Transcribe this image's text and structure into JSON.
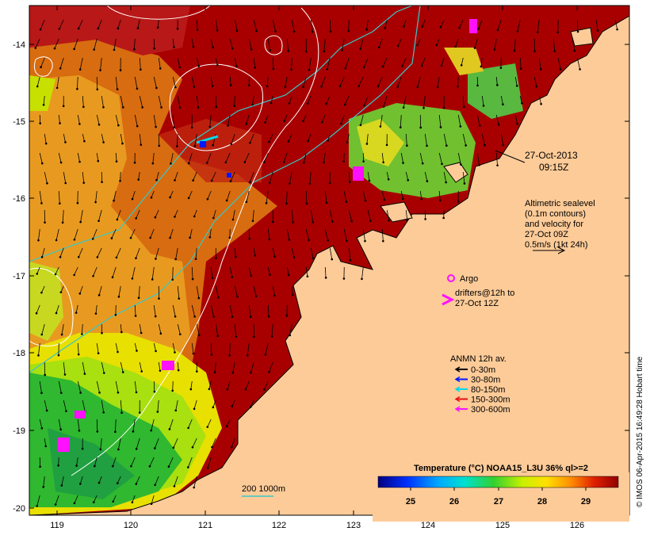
{
  "map": {
    "x_ticks": [
      "119",
      "120",
      "121",
      "122",
      "123",
      "124",
      "125",
      "126"
    ],
    "y_ticks": [
      "-14",
      "-15",
      "-16",
      "-17",
      "-18",
      "-19",
      "-20"
    ],
    "date": "27-Oct-2013",
    "time": "09:15Z",
    "altimetry_lines": [
      "Altimetric sealevel",
      "(0.1m contours)",
      "and velocity for",
      "27-Oct 09Z",
      "0.5m/s (1kt 24h)"
    ],
    "argo_label": "Argo",
    "drifters_lines": [
      "drifters@12h to",
      "27-Oct 12Z"
    ],
    "anmn_title": "ANMN 12h av.",
    "anmn_items": [
      {
        "label": "0-30m",
        "color": "#000000"
      },
      {
        "label": "30-80m",
        "color": "#0018ff"
      },
      {
        "label": "80-150m",
        "color": "#00d8e8"
      },
      {
        "label": "150-300m",
        "color": "#e81010"
      },
      {
        "label": "300-600m",
        "color": "#ff10ff"
      }
    ],
    "colorbar_title": "Temperature (°C) NOAA15_L3U 36% ql>=2",
    "colorbar_ticks": [
      "25",
      "26",
      "27",
      "28",
      "29"
    ],
    "isobath_label": "200  1000m",
    "credit": "© IMOS 06-Apr-2015 16:49:28 Hobart time",
    "colors": {
      "land": "#fdcb98",
      "warm": "#a80000",
      "cool": "#22b822"
    }
  }
}
